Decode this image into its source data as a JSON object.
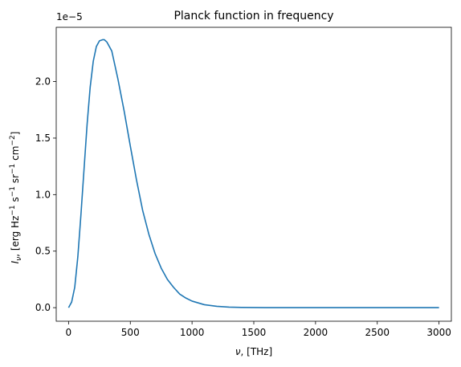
{
  "chart_data": {
    "type": "line",
    "title": "Planck function in frequency",
    "xlabel": "ν, [THz]",
    "ylabel": "I_ν, [erg Hz⁻¹ s⁻¹ sr⁻¹ cm⁻²]",
    "scale_factor_label": "1e−5",
    "xlim": [
      -100,
      3100
    ],
    "ylim": [
      -0.12,
      2.48
    ],
    "x_ticks": [
      0,
      500,
      1000,
      1500,
      2000,
      2500,
      3000
    ],
    "x_tick_labels": [
      "0",
      "500",
      "1000",
      "1500",
      "2000",
      "2500",
      "3000"
    ],
    "y_ticks": [
      0.0,
      0.5,
      1.0,
      1.5,
      2.0
    ],
    "y_tick_labels": [
      "0.0",
      "0.5",
      "1.0",
      "1.5",
      "2.0"
    ],
    "grid": false,
    "series": [
      {
        "color": "#1f77b4",
        "x": [
          0,
          25,
          50,
          75,
          100,
          125,
          150,
          175,
          200,
          225,
          250,
          275,
          290,
          310,
          350,
          400,
          450,
          500,
          550,
          600,
          650,
          700,
          750,
          800,
          850,
          900,
          950,
          1000,
          1100,
          1200,
          1300,
          1400,
          1500,
          1600,
          1800,
          2000,
          2200,
          2500,
          2800,
          3000
        ],
        "values": [
          0.0,
          0.05,
          0.18,
          0.45,
          0.82,
          1.22,
          1.62,
          1.95,
          2.18,
          2.31,
          2.36,
          2.37,
          2.37,
          2.35,
          2.27,
          2.02,
          1.74,
          1.43,
          1.13,
          0.86,
          0.65,
          0.48,
          0.35,
          0.25,
          0.18,
          0.12,
          0.085,
          0.058,
          0.026,
          0.012,
          0.005,
          0.002,
          0.001,
          0.0005,
          0.0001,
          0.0,
          0.0,
          0.0,
          0.0,
          0.0
        ]
      }
    ]
  }
}
